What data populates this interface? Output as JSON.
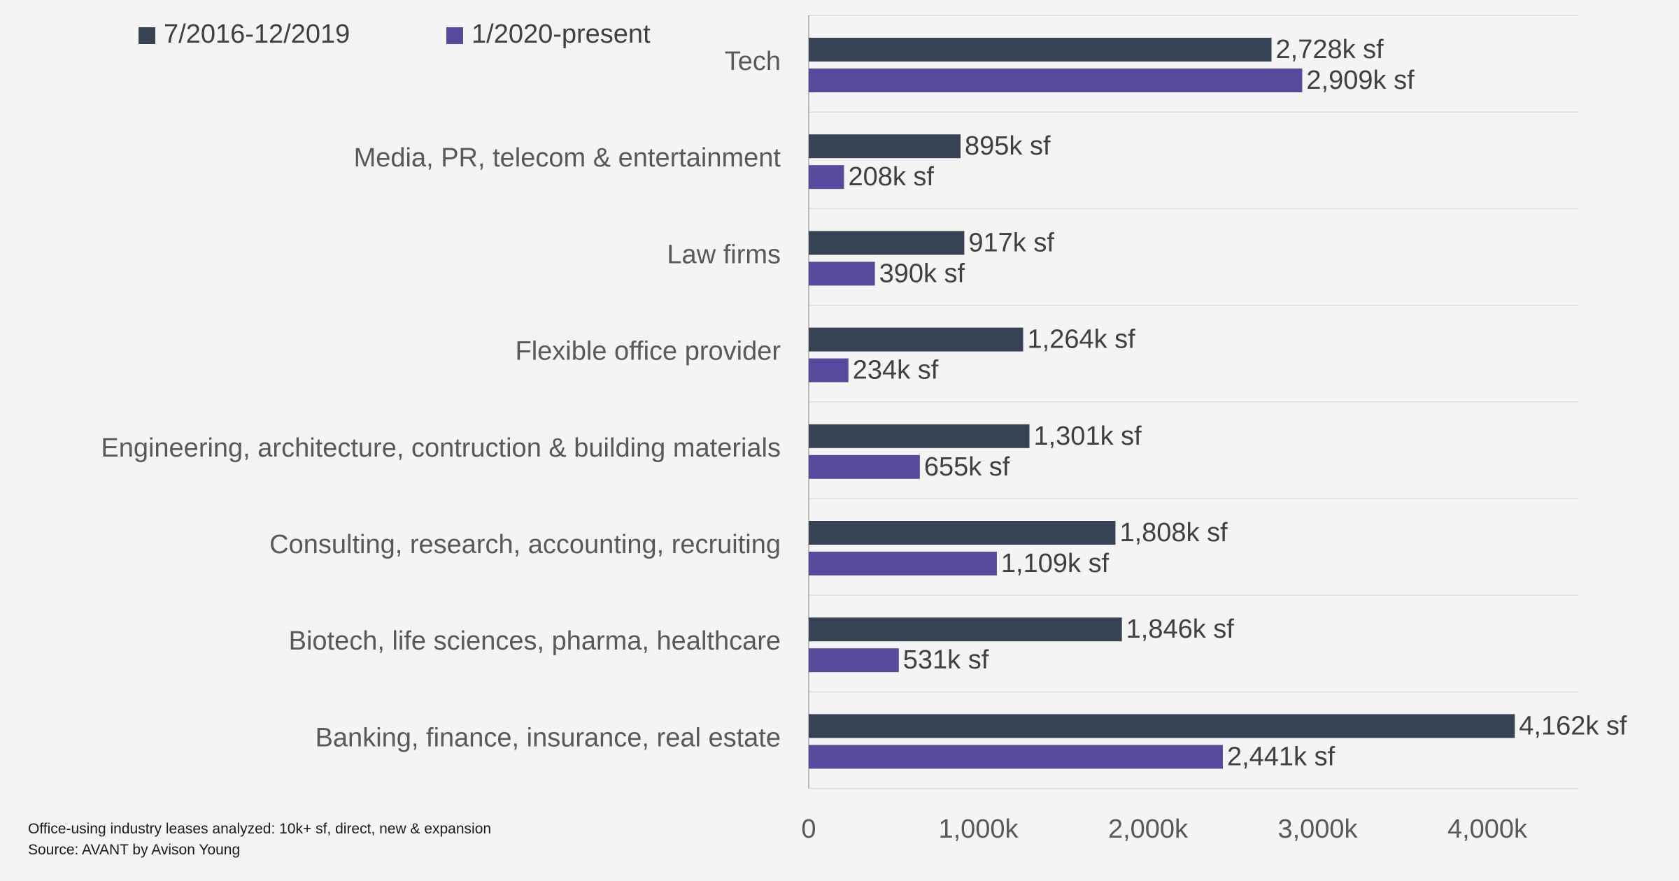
{
  "chart_data": {
    "type": "bar",
    "orientation": "horizontal",
    "categories": [
      "Tech",
      "Media, PR, telecom & entertainment",
      "Law firms",
      "Flexible office provider",
      "Engineering, architecture, contruction & building materials",
      "Consulting, research, accounting, recruiting",
      "Biotech, life sciences, pharma, healthcare",
      "Banking, finance, insurance, real estate"
    ],
    "series": [
      {
        "name": "7/2016-12/2019",
        "color": "#374254",
        "values": [
          2728,
          895,
          917,
          1264,
          1301,
          1808,
          1846,
          4162
        ],
        "labels": [
          "2,728k sf",
          "895k sf",
          "917k sf",
          "1,264k sf",
          "1,301k sf",
          "1,808k sf",
          "1,846k sf",
          "4,162k sf"
        ]
      },
      {
        "name": "1/2020-present",
        "color": "#574a9e",
        "values": [
          2909,
          208,
          390,
          234,
          655,
          1109,
          531,
          2441
        ],
        "labels": [
          "2,909k sf",
          "208k sf",
          "390k sf",
          "234k sf",
          "655k sf",
          "1,109k sf",
          "531k sf",
          "2,441k sf"
        ]
      }
    ],
    "x_ticks": [
      0,
      1000,
      2000,
      3000,
      4000
    ],
    "x_tick_labels": [
      "0",
      "1,000k",
      "2,000k",
      "3,000k",
      "4,000k"
    ],
    "xlim": [
      0,
      4500
    ],
    "legend_position": "top-left",
    "grid": "horizontal separators between categories"
  },
  "footnotes": {
    "line1": "Office-using industry leases analyzed: 10k+ sf, direct, new & expansion",
    "line2": "Source: AVANT by Avison Young"
  }
}
